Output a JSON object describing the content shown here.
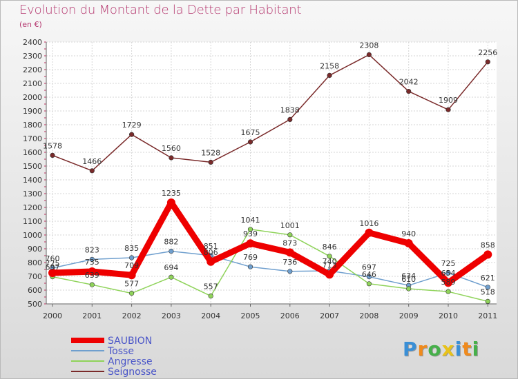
{
  "chart_data": {
    "type": "line",
    "title": "Evolution du Montant de la Dette par Habitant",
    "subtitle": "(en €)",
    "x": [
      "2000",
      "2001",
      "2002",
      "2003",
      "2004",
      "2005",
      "2006",
      "2007",
      "2008",
      "2009",
      "2010",
      "2011"
    ],
    "ylim": [
      500,
      2400
    ],
    "yticks": [
      500,
      600,
      700,
      800,
      900,
      1000,
      1100,
      1200,
      1300,
      1400,
      1500,
      1600,
      1700,
      1800,
      1900,
      2000,
      2100,
      2200,
      2300,
      2400
    ],
    "grid": true,
    "legend_position": "bottom-left",
    "series": [
      {
        "name": "SAUBION",
        "color": "#ee0000",
        "values": [
          725,
          735,
          709,
          1235,
          806,
          939,
          873,
          713,
          1016,
          940,
          654,
          858
        ]
      },
      {
        "name": "Tosse",
        "color": "#6f9fce",
        "values": [
          760,
          823,
          835,
          882,
          851,
          769,
          736,
          740,
          697,
          634,
          725,
          621
        ]
      },
      {
        "name": "Angresse",
        "color": "#8fd35a",
        "values": [
          697,
          639,
          577,
          694,
          557,
          1041,
          1001,
          846,
          646,
          610,
          589,
          518
        ]
      },
      {
        "name": "Seignosse",
        "color": "#7a2a2a",
        "values": [
          1578,
          1466,
          1729,
          1560,
          1528,
          1675,
          1838,
          2158,
          2308,
          2042,
          1909,
          2256
        ]
      }
    ]
  },
  "brand": {
    "letters": [
      "P",
      "r",
      "o",
      "x",
      "i",
      "t",
      "i"
    ],
    "colors": [
      "#3a8fd6",
      "#f08a1c",
      "#46b04a",
      "#e8c21a",
      "#3a8fd6",
      "#f08a1c",
      "#46b04a"
    ]
  }
}
